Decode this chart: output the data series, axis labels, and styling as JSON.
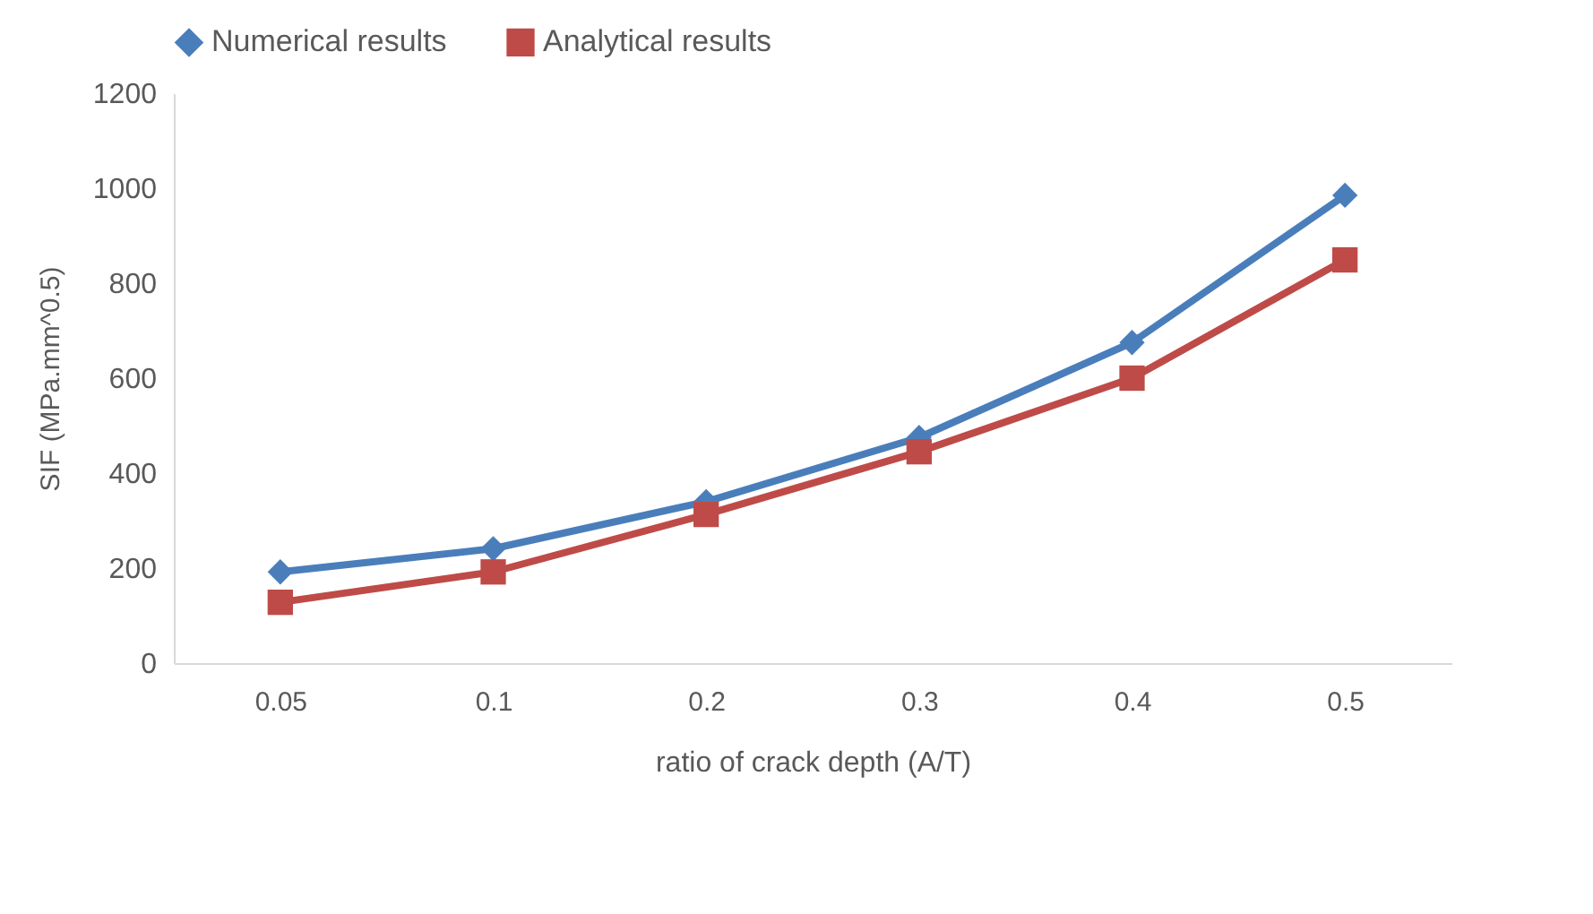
{
  "chart_data": {
    "type": "line",
    "xlabel": "ratio of crack depth (A/T)",
    "ylabel": "SIF (MPa.mm^0.5)",
    "categories": [
      "0.05",
      "0.1",
      "0.2",
      "0.3",
      "0.4",
      "0.5"
    ],
    "series": [
      {
        "name": "Numerical results",
        "color": "#4a7ebb",
        "marker": "diamond",
        "values": [
          192,
          241,
          340,
          475,
          675,
          985
        ]
      },
      {
        "name": "Analytical results",
        "color": "#be4b48",
        "marker": "square",
        "values": [
          128,
          192,
          313,
          445,
          600,
          849
        ]
      }
    ],
    "ylim": [
      0,
      1200
    ],
    "yticks": [
      0,
      200,
      400,
      600,
      800,
      1000,
      1200
    ],
    "grid": false,
    "legend": "top"
  }
}
